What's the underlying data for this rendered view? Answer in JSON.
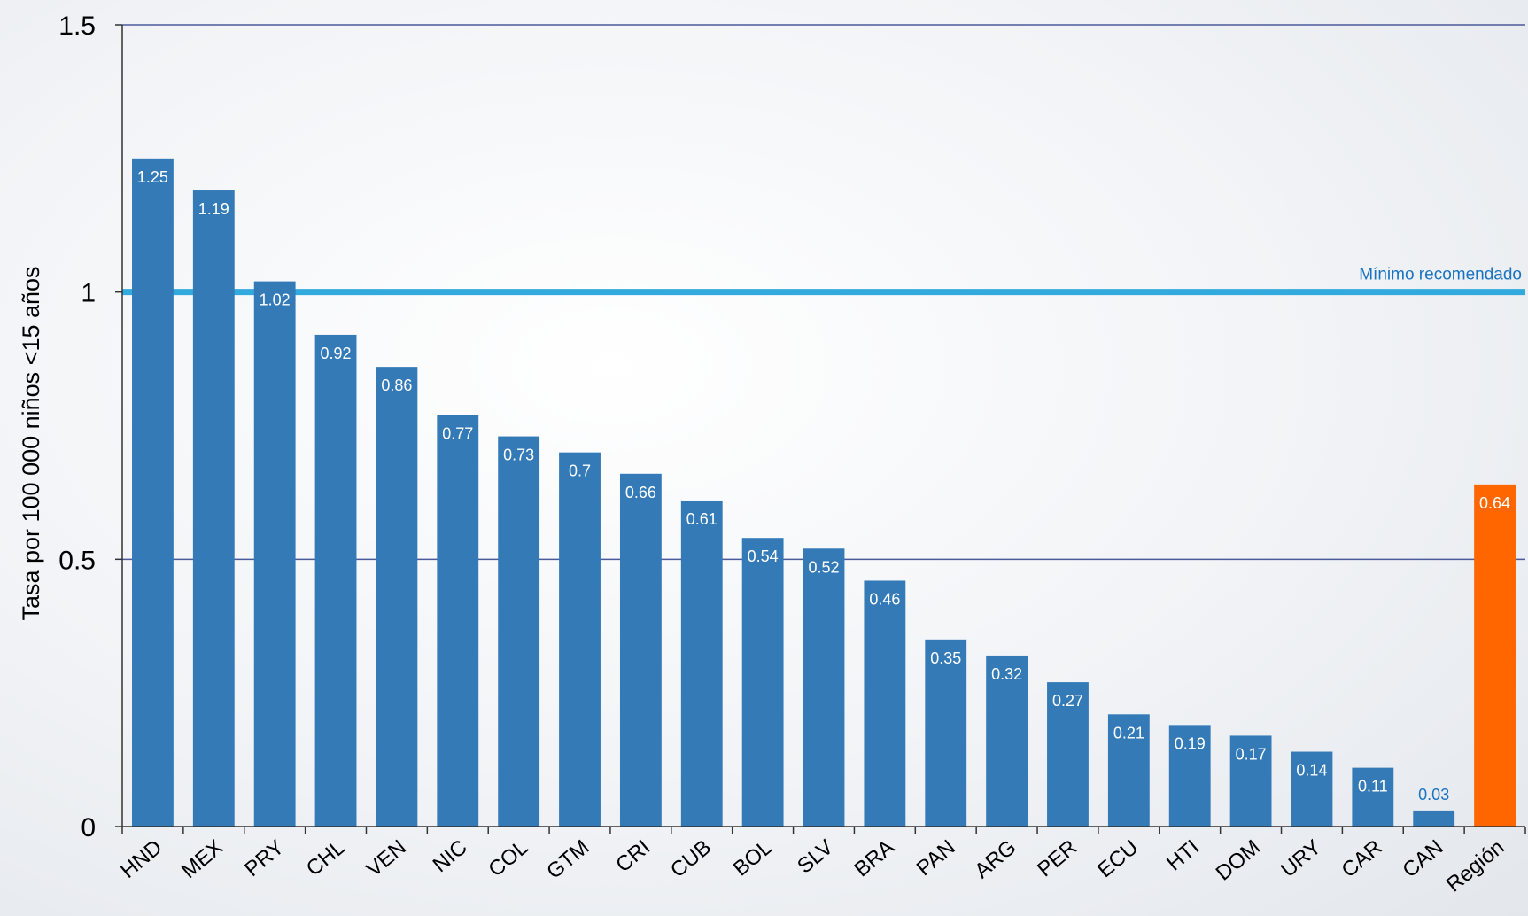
{
  "chart_data": {
    "type": "bar",
    "ylabel": "Tasa por 100 000 niños <15 años",
    "ylim": [
      0,
      1.5
    ],
    "yticks": [
      {
        "value": 0,
        "label": "0"
      },
      {
        "value": 0.5,
        "label": "0.5"
      },
      {
        "value": 1,
        "label": "1"
      },
      {
        "value": 1.5,
        "label": "1.5"
      }
    ],
    "grid": true,
    "categories": [
      "HND",
      "MEX",
      "PRY",
      "CHL",
      "VEN",
      "NIC",
      "COL",
      "GTM",
      "CRI",
      "CUB",
      "BOL",
      "SLV",
      "BRA",
      "PAN",
      "ARG",
      "PER",
      "ECU",
      "HTI",
      "DOM",
      "URY",
      "CAR",
      "CAN",
      "Región"
    ],
    "values": [
      1.25,
      1.19,
      1.02,
      0.92,
      0.86,
      0.77,
      0.73,
      0.7,
      0.66,
      0.61,
      0.54,
      0.52,
      0.46,
      0.35,
      0.32,
      0.27,
      0.21,
      0.19,
      0.17,
      0.14,
      0.11,
      0.03,
      0.64
    ],
    "data_labels": [
      "1.25",
      "1.19",
      "1.02",
      "0.92",
      "0.86",
      "0.77",
      "0.73",
      "0.7",
      "0.66",
      "0.61",
      "0.54",
      "0.52",
      "0.46",
      "0.35",
      "0.32",
      "0.27",
      "0.21",
      "0.19",
      "0.17",
      "0.14",
      "0.11",
      "0.03",
      "0.64"
    ],
    "highlight": {
      "category": "Región",
      "color": "#ff6600"
    },
    "bar_color": "#337ab7",
    "reference_line": {
      "value": 1,
      "label": "Mínimo recomendado",
      "color": "#33aadd",
      "label_color": "#1a73c0"
    }
  }
}
